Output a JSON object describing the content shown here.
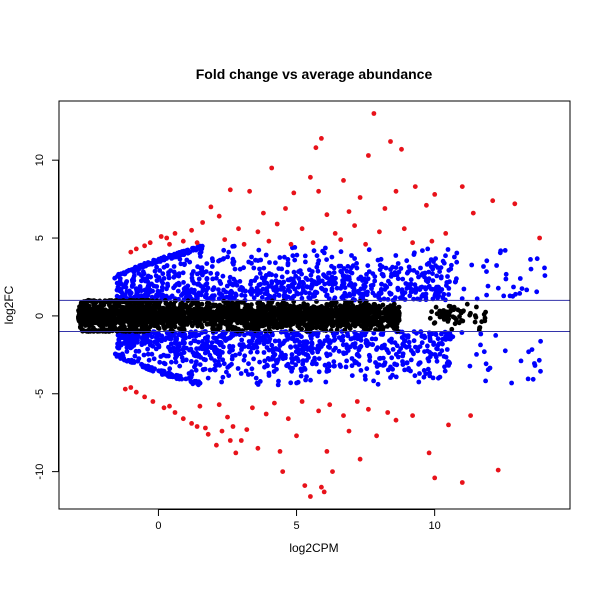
{
  "chart_data": {
    "type": "scatter",
    "title": "Fold change vs average abundance",
    "xlabel": "log2CPM",
    "ylabel": "log2FC",
    "xlim": [
      -3.6,
      14.9
    ],
    "ylim": [
      -12.4,
      13.8
    ],
    "xticks": [
      0,
      5,
      10
    ],
    "yticks": [
      -10,
      -5,
      0,
      5,
      10
    ],
    "grid": false,
    "legend": "none",
    "colors": {
      "unchanged": "#000000",
      "moderate": "#0000ff",
      "strong": "#e8121a",
      "threshold_line": "#3333aa"
    },
    "thresholds": {
      "abs_log2fc_moderate": 1,
      "abs_log2fc_strong": 4.5
    },
    "hlines": [
      1,
      -1
    ],
    "envelope": {
      "description_values": "lower bound of |log2FC| rises with log2CPM; points cluster around 0 and fan out",
      "left_x": -2.9,
      "max_abs_at_left": 0.2,
      "fan_apex_x": 1.5
    },
    "series": [
      {
        "group": "unchanged",
        "approx_count": 9000,
        "x_range": [
          -2.9,
          12.0
        ],
        "y_abs_max": 1.0
      },
      {
        "group": "moderate",
        "approx_count": 6500,
        "x_range": [
          -1.5,
          14.0
        ],
        "y_abs_range": [
          1.0,
          4.5
        ]
      },
      {
        "group": "strong",
        "points": [
          [
            7.8,
            13.0
          ],
          [
            5.9,
            11.4
          ],
          [
            5.7,
            10.8
          ],
          [
            8.4,
            11.2
          ],
          [
            8.8,
            10.7
          ],
          [
            7.6,
            10.3
          ],
          [
            4.1,
            9.5
          ],
          [
            5.5,
            8.9
          ],
          [
            9.3,
            8.3
          ],
          [
            11.0,
            8.3
          ],
          [
            5.8,
            8.0
          ],
          [
            6.7,
            8.7
          ],
          [
            2.6,
            8.1
          ],
          [
            3.3,
            8.0
          ],
          [
            4.9,
            7.9
          ],
          [
            7.3,
            7.6
          ],
          [
            8.6,
            8.0
          ],
          [
            10.0,
            7.8
          ],
          [
            12.1,
            7.4
          ],
          [
            12.9,
            7.2
          ],
          [
            13.8,
            5.0
          ],
          [
            1.9,
            7.0
          ],
          [
            2.2,
            6.4
          ],
          [
            3.8,
            6.6
          ],
          [
            4.6,
            6.9
          ],
          [
            6.1,
            6.5
          ],
          [
            6.9,
            6.7
          ],
          [
            8.2,
            6.9
          ],
          [
            9.7,
            7.1
          ],
          [
            11.4,
            6.6
          ],
          [
            1.2,
            5.5
          ],
          [
            1.6,
            6.0
          ],
          [
            2.9,
            5.6
          ],
          [
            3.6,
            5.4
          ],
          [
            4.3,
            5.9
          ],
          [
            5.2,
            5.6
          ],
          [
            6.4,
            5.3
          ],
          [
            7.1,
            5.8
          ],
          [
            8.0,
            5.4
          ],
          [
            8.9,
            5.6
          ],
          [
            10.4,
            5.3
          ],
          [
            0.4,
            4.6
          ],
          [
            0.9,
            4.8
          ],
          [
            1.4,
            4.7
          ],
          [
            2.4,
            4.9
          ],
          [
            3.1,
            4.6
          ],
          [
            4.0,
            4.8
          ],
          [
            4.8,
            4.6
          ],
          [
            5.6,
            4.7
          ],
          [
            6.6,
            4.9
          ],
          [
            7.5,
            4.6
          ],
          [
            9.2,
            4.7
          ],
          [
            9.9,
            4.8
          ],
          [
            -0.3,
            4.7
          ],
          [
            0.1,
            5.1
          ],
          [
            -0.8,
            4.3
          ],
          [
            -0.5,
            4.5
          ],
          [
            -1.0,
            4.1
          ],
          [
            0.6,
            5.3
          ],
          [
            0.3,
            5.0
          ],
          [
            4.5,
            -10.0
          ],
          [
            5.3,
            -10.9
          ],
          [
            5.5,
            -11.6
          ],
          [
            5.9,
            -11.0
          ],
          [
            6.0,
            -11.3
          ],
          [
            11.0,
            -10.7
          ],
          [
            12.3,
            -9.9
          ],
          [
            10.0,
            -10.4
          ],
          [
            9.8,
            -8.8
          ],
          [
            6.3,
            -10.0
          ],
          [
            7.3,
            -9.2
          ],
          [
            6.1,
            -8.7
          ],
          [
            4.4,
            -8.7
          ],
          [
            3.6,
            -8.5
          ],
          [
            2.8,
            -8.8
          ],
          [
            2.1,
            -8.3
          ],
          [
            3.0,
            -8.0
          ],
          [
            5.0,
            -7.7
          ],
          [
            6.9,
            -7.4
          ],
          [
            7.9,
            -7.7
          ],
          [
            8.6,
            -6.7
          ],
          [
            9.2,
            -6.4
          ],
          [
            11.3,
            -6.4
          ],
          [
            10.5,
            -7.0
          ],
          [
            1.7,
            -7.2
          ],
          [
            1.2,
            -6.9
          ],
          [
            2.5,
            -6.5
          ],
          [
            3.9,
            -6.3
          ],
          [
            4.7,
            -6.6
          ],
          [
            5.8,
            -6.1
          ],
          [
            6.7,
            -6.4
          ],
          [
            7.6,
            -6.0
          ],
          [
            8.3,
            -6.2
          ],
          [
            0.6,
            -6.2
          ],
          [
            0.2,
            -5.9
          ],
          [
            1.5,
            -5.8
          ],
          [
            2.2,
            -5.7
          ],
          [
            3.4,
            -5.9
          ],
          [
            4.2,
            -5.6
          ],
          [
            5.2,
            -5.5
          ],
          [
            6.2,
            -5.7
          ],
          [
            7.2,
            -5.5
          ],
          [
            0.9,
            -6.6
          ],
          [
            1.4,
            -7.1
          ],
          [
            1.8,
            -7.6
          ],
          [
            2.3,
            -7.4
          ],
          [
            2.7,
            -7.1
          ],
          [
            -0.2,
            -5.5
          ],
          [
            -0.5,
            -5.2
          ],
          [
            -0.8,
            -4.9
          ],
          [
            -1.0,
            -4.6
          ],
          [
            -1.2,
            -4.7
          ],
          [
            0.4,
            -5.8
          ],
          [
            2.6,
            -8.0
          ],
          [
            3.2,
            -7.3
          ]
        ]
      }
    ]
  }
}
